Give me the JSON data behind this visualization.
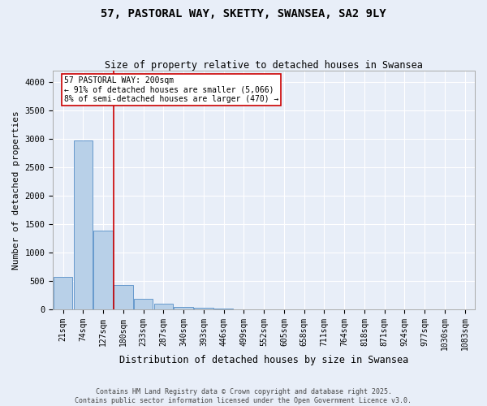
{
  "title": "57, PASTORAL WAY, SKETTY, SWANSEA, SA2 9LY",
  "subtitle": "Size of property relative to detached houses in Swansea",
  "xlabel": "Distribution of detached houses by size in Swansea",
  "ylabel": "Number of detached properties",
  "categories": [
    "21sqm",
    "74sqm",
    "127sqm",
    "180sqm",
    "233sqm",
    "287sqm",
    "340sqm",
    "393sqm",
    "446sqm",
    "499sqm",
    "552sqm",
    "605sqm",
    "658sqm",
    "711sqm",
    "764sqm",
    "818sqm",
    "871sqm",
    "924sqm",
    "977sqm",
    "1030sqm",
    "1083sqm"
  ],
  "values": [
    560,
    2970,
    1380,
    420,
    185,
    90,
    40,
    20,
    5,
    0,
    0,
    0,
    0,
    0,
    0,
    0,
    0,
    0,
    0,
    0,
    0
  ],
  "bar_color": "#b8d0e8",
  "bar_edge_color": "#6699cc",
  "vline_x": 2.5,
  "annotation_text": "57 PASTORAL WAY: 200sqm\n← 91% of detached houses are smaller (5,066)\n8% of semi-detached houses are larger (470) →",
  "vline_color": "#cc0000",
  "background_color": "#e8eef8",
  "grid_color": "#ffffff",
  "ylim": [
    0,
    4200
  ],
  "yticks": [
    0,
    500,
    1000,
    1500,
    2000,
    2500,
    3000,
    3500,
    4000
  ],
  "footer": "Contains HM Land Registry data © Crown copyright and database right 2025.\nContains public sector information licensed under the Open Government Licence v3.0."
}
